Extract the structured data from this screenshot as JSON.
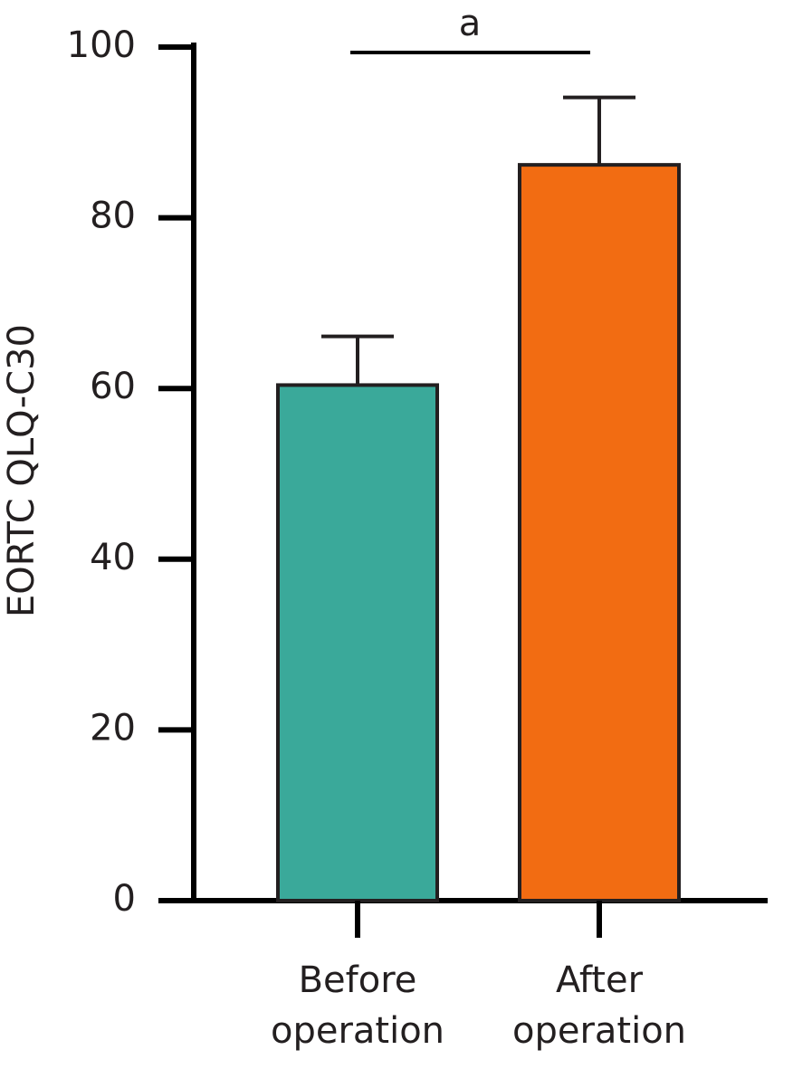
{
  "chart_data": {
    "type": "bar",
    "y_label": "EORTC QLQ-C30",
    "categories": [
      "Before operation",
      "After operation"
    ],
    "values": [
      60.4,
      86.2
    ],
    "errors": [
      5.7,
      7.9
    ],
    "colors": [
      "#3aa99a",
      "#f26c12"
    ],
    "annotation": "a",
    "ylim": [
      0,
      100
    ],
    "yticks": [
      0,
      20,
      40,
      60,
      80,
      100
    ]
  }
}
